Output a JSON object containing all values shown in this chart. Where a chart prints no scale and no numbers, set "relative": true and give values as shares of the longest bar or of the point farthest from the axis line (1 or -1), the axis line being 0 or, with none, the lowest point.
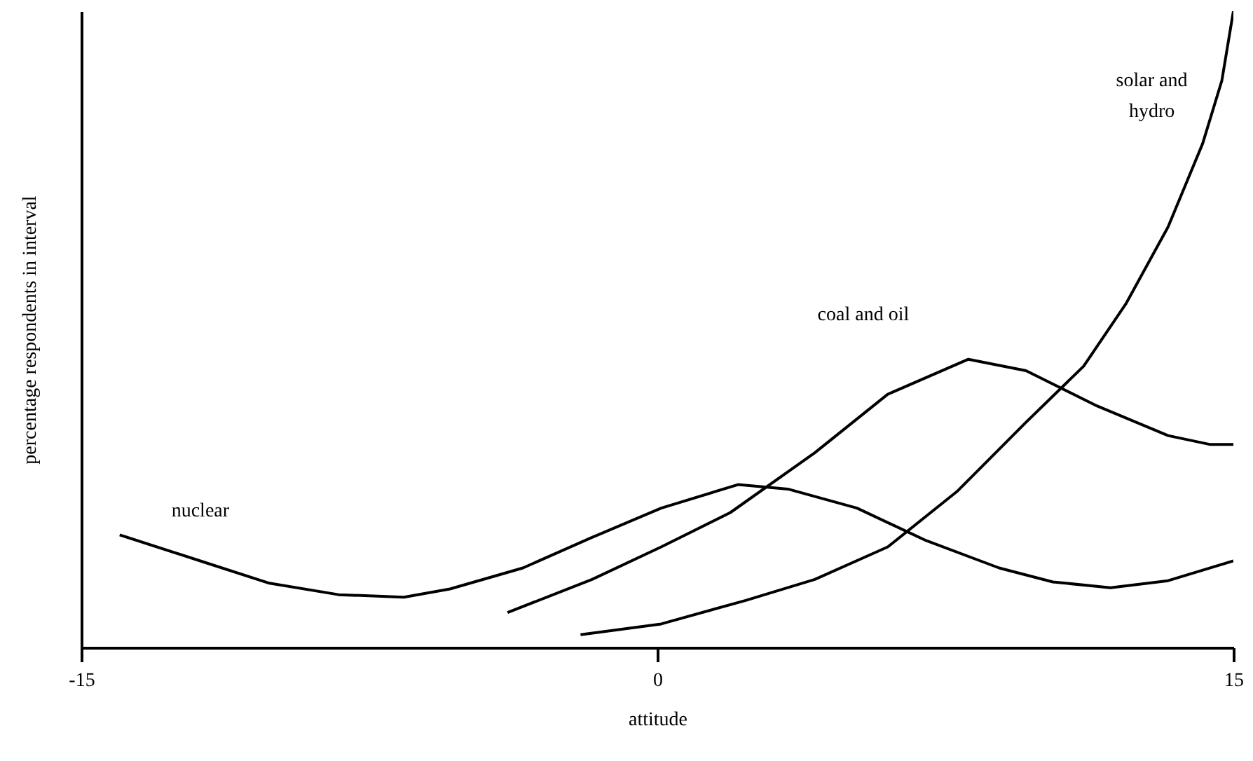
{
  "chart_data": {
    "type": "line",
    "relative": true,
    "xlabel": "attitude",
    "ylabel": "percentage respondents in interval",
    "xlim": [
      -15,
      15
    ],
    "xticks": [
      {
        "value": -15,
        "label": "-15"
      },
      0,
      15
    ],
    "grid": false,
    "marker": "none",
    "line_style": "solid",
    "series": [
      {
        "name": "nuclear",
        "color": "#000000",
        "x": [
          -14,
          -11.9,
          -10.1,
          -8.3,
          -6.6,
          -5.4,
          -3.5,
          -1.7,
          0.1,
          2.1,
          3.4,
          5.2,
          7,
          8.9,
          10.3,
          11.8,
          13.3,
          15
        ],
        "values": [
          0.177,
          0.136,
          0.101,
          0.083,
          0.079,
          0.092,
          0.125,
          0.173,
          0.219,
          0.256,
          0.249,
          0.219,
          0.168,
          0.125,
          0.103,
          0.094,
          0.105,
          0.136
        ]
      },
      {
        "name": "coal and oil",
        "color": "#000000",
        "x": [
          -3.9,
          -1.7,
          0.1,
          1.9,
          4.1,
          6,
          8.1,
          9.6,
          11.4,
          13.3,
          14.4,
          15
        ],
        "values": [
          0.055,
          0.107,
          0.158,
          0.212,
          0.306,
          0.398,
          0.453,
          0.435,
          0.381,
          0.333,
          0.319,
          0.319
        ]
      },
      {
        "name": "solar and hydro",
        "color": "#000000",
        "x": [
          -2,
          0.1,
          2.3,
          4.1,
          6,
          7.8,
          9.6,
          11.1,
          12.2,
          13.3,
          14.2,
          14.7,
          15
        ],
        "values": [
          0.02,
          0.037,
          0.074,
          0.107,
          0.158,
          0.245,
          0.354,
          0.442,
          0.54,
          0.661,
          0.792,
          0.891,
          1
        ]
      }
    ]
  }
}
